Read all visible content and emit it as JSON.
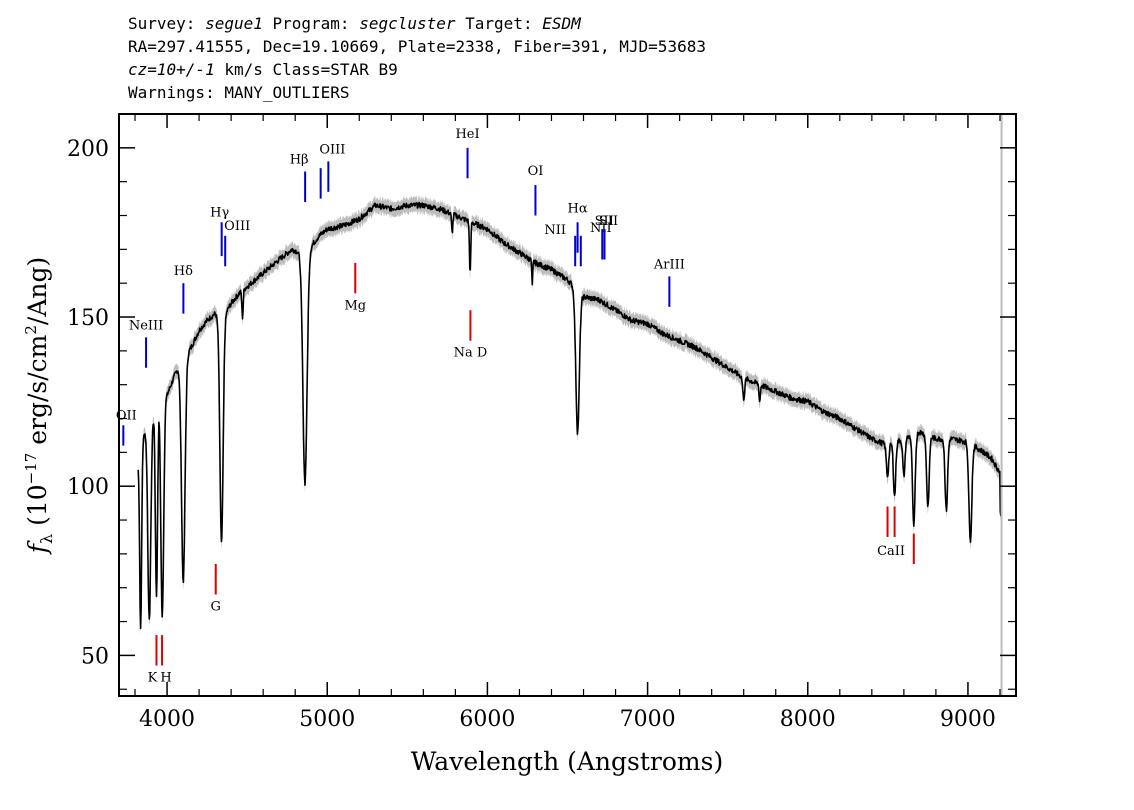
{
  "header": {
    "line1": {
      "p1": "Survey: ",
      "survey": "segue1",
      "p2": " Program: ",
      "program": "segcluster",
      "p3": " Target: ",
      "target": "ESDM"
    },
    "line2": "RA=297.41555, Dec=19.10669, Plate=2338, Fiber=391, MJD=53683",
    "line3": {
      "cz": "cz=10+/-1",
      "rest": " km/s Class=STAR B9"
    },
    "line4": "Warnings: MANY_OUTLIERS"
  },
  "colors": {
    "spectrum": "#000000",
    "error_band": "#bdbdbd",
    "emission": "#0000cc",
    "absorption": "#dd0000",
    "axis": "#000000"
  },
  "chart_data": {
    "type": "line",
    "xlabel": "Wavelength (Angstroms)",
    "ylabel_parts": {
      "f": "f",
      "sub": "λ",
      "pre": " (10",
      "exp": "−17",
      "mid": " erg/s/cm",
      "exp2": "2",
      "post": "/Ang)"
    },
    "xlim": [
      3700,
      9300
    ],
    "ylim": [
      38,
      210
    ],
    "x_ticks": [
      4000,
      5000,
      6000,
      7000,
      8000,
      9000
    ],
    "x_tick_labels": [
      "4000",
      "5000",
      "6000",
      "7000",
      "8000",
      "9000"
    ],
    "y_ticks": [
      50,
      100,
      150,
      200
    ],
    "y_tick_labels": [
      "50",
      "100",
      "150",
      "200"
    ],
    "continuum": [
      [
        3820,
        107
      ],
      [
        3860,
        116
      ],
      [
        3900,
        118
      ],
      [
        3950,
        129
      ],
      [
        4000,
        127
      ],
      [
        4050,
        133
      ],
      [
        4080,
        136
      ],
      [
        4150,
        141
      ],
      [
        4200,
        146
      ],
      [
        4250,
        149
      ],
      [
        4300,
        151
      ],
      [
        4340,
        149
      ],
      [
        4400,
        154
      ],
      [
        4450,
        157
      ],
      [
        4500,
        159
      ],
      [
        4600,
        163
      ],
      [
        4700,
        167
      ],
      [
        4780,
        170
      ],
      [
        4830,
        169
      ],
      [
        4900,
        171
      ],
      [
        4950,
        174
      ],
      [
        5000,
        176
      ],
      [
        5100,
        177
      ],
      [
        5200,
        179
      ],
      [
        5300,
        183
      ],
      [
        5400,
        182
      ],
      [
        5500,
        183
      ],
      [
        5600,
        183
      ],
      [
        5700,
        182
      ],
      [
        5800,
        180
      ],
      [
        5900,
        178
      ],
      [
        6000,
        176
      ],
      [
        6100,
        172
      ],
      [
        6200,
        169
      ],
      [
        6300,
        166
      ],
      [
        6400,
        164
      ],
      [
        6500,
        161
      ],
      [
        6600,
        156
      ],
      [
        6700,
        155
      ],
      [
        6800,
        152
      ],
      [
        6900,
        149
      ],
      [
        7000,
        148
      ],
      [
        7100,
        145
      ],
      [
        7200,
        143
      ],
      [
        7300,
        141
      ],
      [
        7400,
        138
      ],
      [
        7500,
        135
      ],
      [
        7600,
        132
      ],
      [
        7700,
        130
      ],
      [
        7800,
        128
      ],
      [
        7900,
        126
      ],
      [
        8000,
        125
      ],
      [
        8100,
        122
      ],
      [
        8200,
        120
      ],
      [
        8300,
        117
      ],
      [
        8400,
        114
      ],
      [
        8500,
        112
      ],
      [
        8600,
        114
      ],
      [
        8700,
        116
      ],
      [
        8800,
        114
      ],
      [
        8900,
        114
      ],
      [
        9000,
        113
      ],
      [
        9100,
        110
      ],
      [
        9150,
        108
      ],
      [
        9200,
        104
      ]
    ],
    "absorption_features": [
      [
        3835,
        58,
        6
      ],
      [
        3889,
        60,
        9
      ],
      [
        3934,
        68,
        7
      ],
      [
        3970,
        61,
        9
      ],
      [
        4101,
        72,
        11
      ],
      [
        4340,
        83,
        10
      ],
      [
        4471,
        150,
        4
      ],
      [
        4861,
        101,
        13
      ],
      [
        5780,
        175,
        4
      ],
      [
        5892,
        163,
        4
      ],
      [
        6280,
        159,
        3
      ],
      [
        6563,
        116,
        11
      ],
      [
        7600,
        126,
        6
      ],
      [
        7700,
        125,
        4
      ],
      [
        8498,
        103,
        7
      ],
      [
        8542,
        97,
        7
      ],
      [
        8600,
        103,
        7
      ],
      [
        8662,
        88,
        8
      ],
      [
        8750,
        94,
        8
      ],
      [
        8865,
        93,
        8
      ],
      [
        9015,
        84,
        9
      ]
    ],
    "emission_lines": [
      {
        "label": "OII",
        "x": 3727,
        "y_top": 118,
        "y_bottom": 112
      },
      {
        "label": "NeIII",
        "x": 3869,
        "y_top": 144,
        "y_bottom": 135
      },
      {
        "label": "Hδ",
        "x": 4102,
        "y_top": 160,
        "y_bottom": 151
      },
      {
        "label": "Hγ",
        "x": 4341,
        "y_top": 178,
        "y_bottom": 168
      },
      {
        "label": "OIII",
        "x": 4363,
        "y_top": 174,
        "y_bottom": 165
      },
      {
        "label": "Hβ",
        "x": 4862,
        "y_top": 193,
        "y_bottom": 184
      },
      {
        "label": "OIII",
        "x": 4959,
        "y_top": 194,
        "y_bottom": 185
      },
      {
        "label": "OIII",
        "x": 5007,
        "y_top": 196,
        "y_bottom": 187
      },
      {
        "label": "HeI",
        "x": 5876,
        "y_top": 200,
        "y_bottom": 191
      },
      {
        "label": "OI",
        "x": 6300,
        "y_top": 189,
        "y_bottom": 180
      },
      {
        "label": "NII",
        "x": 6548,
        "y_top": 174,
        "y_bottom": 165
      },
      {
        "label": "Hα",
        "x": 6563,
        "y_top": 178,
        "y_bottom": 169
      },
      {
        "label": "NII",
        "x": 6583,
        "y_top": 174,
        "y_bottom": 165
      },
      {
        "label": "SII",
        "x": 6717,
        "y_top": 176,
        "y_bottom": 167
      },
      {
        "label": "SII",
        "x": 6731,
        "y_top": 176,
        "y_bottom": 167
      },
      {
        "label": "ArIII",
        "x": 7136,
        "y_top": 162,
        "y_bottom": 153
      }
    ],
    "absorption_lines": [
      {
        "label": "K",
        "x": 3934,
        "y_top": 56,
        "y_bottom": 47
      },
      {
        "label": "H",
        "x": 3969,
        "y_top": 56,
        "y_bottom": 47
      },
      {
        "label": "G",
        "x": 4304,
        "y_top": 77,
        "y_bottom": 68
      },
      {
        "label": "Mg",
        "x": 5175,
        "y_top": 166,
        "y_bottom": 157
      },
      {
        "label": "Na D",
        "x": 5894,
        "y_top": 152,
        "y_bottom": 143
      },
      {
        "label": "CaII",
        "x": 8498,
        "y_top": 94,
        "y_bottom": 85
      },
      {
        "label": "CaII",
        "x": 8542,
        "y_top": 94,
        "y_bottom": 85
      },
      {
        "label": "CaII",
        "x": 8662,
        "y_top": 86,
        "y_bottom": 77
      }
    ]
  }
}
